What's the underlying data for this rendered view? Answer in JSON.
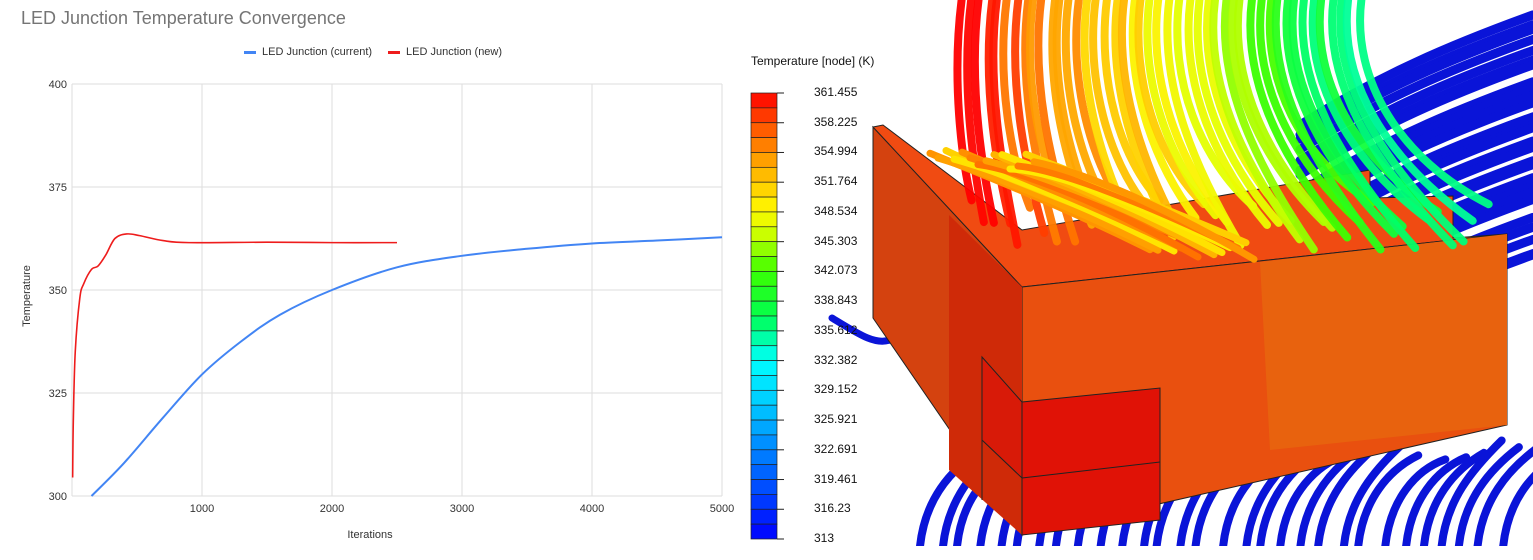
{
  "chart_data": {
    "type": "line",
    "title": "LED Junction Temperature Convergence",
    "xlabel": "Iterations",
    "ylabel": "Temperature",
    "xlim": [
      0,
      5000
    ],
    "ylim": [
      300,
      400
    ],
    "xticks": [
      "1000",
      "2000",
      "3000",
      "4000",
      "5000"
    ],
    "yticks": [
      "300",
      "325",
      "350",
      "375",
      "400"
    ],
    "grid": true,
    "legend_position": "top-center",
    "series": [
      {
        "name": "LED Junction (current)",
        "color": "#4285f4",
        "x": [
          150,
          400,
          700,
          1000,
          1300,
          1600,
          2000,
          2500,
          3000,
          3500,
          4000,
          4500,
          5000
        ],
        "y": [
          300,
          308,
          319,
          329.5,
          337.5,
          344,
          350,
          355.5,
          358.3,
          360,
          361.3,
          362,
          362.8
        ]
      },
      {
        "name": "LED Junction (new)",
        "color": "#ee1c1c",
        "x": [
          5,
          10,
          25,
          60,
          90,
          150,
          200,
          260,
          330,
          420,
          520,
          700,
          900,
          1500,
          2000,
          2500
        ],
        "y": [
          304.5,
          318,
          335,
          348,
          351.5,
          355,
          355.8,
          358.5,
          362.5,
          363.6,
          363.2,
          362,
          361.5,
          361.6,
          361.5,
          361.5
        ]
      }
    ]
  },
  "colorbar": {
    "title": "Temperature [node] (K)",
    "labels": [
      "361.455",
      "358.225",
      "354.994",
      "351.764",
      "348.534",
      "345.303",
      "342.073",
      "338.843",
      "335.612",
      "332.382",
      "329.152",
      "325.921",
      "322.691",
      "319.461",
      "316.23",
      "313"
    ]
  }
}
